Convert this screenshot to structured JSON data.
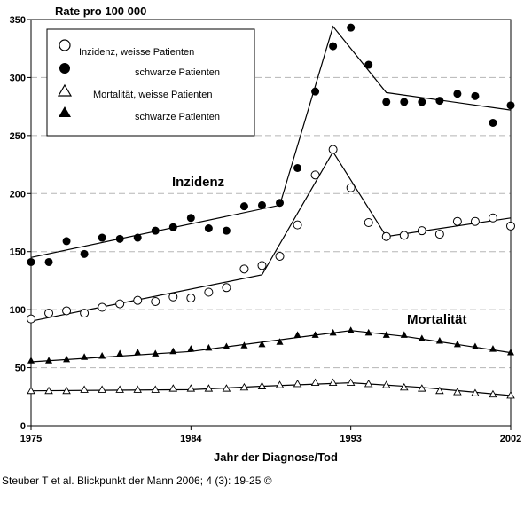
{
  "chart_data": {
    "type": "scatter",
    "ylabel": "Rate pro 100 000",
    "xlabel": "Jahr der Diagnose/Tod",
    "xlim": [
      1975,
      2002
    ],
    "ylim": [
      0,
      350
    ],
    "x_ticks": [
      1975,
      1984,
      1993,
      2002
    ],
    "y_ticks": [
      0,
      50,
      100,
      150,
      200,
      250,
      300,
      350
    ],
    "grid": "horizontal dashed",
    "legend_position": "top-left",
    "annotations": [
      "Inzidenz",
      "Mortalität"
    ],
    "years": [
      1975,
      1976,
      1977,
      1978,
      1979,
      1980,
      1981,
      1982,
      1983,
      1984,
      1985,
      1986,
      1987,
      1988,
      1989,
      1990,
      1991,
      1992,
      1993,
      1994,
      1995,
      1996,
      1997,
      1998,
      1999,
      2000,
      2001,
      2002
    ],
    "series": [
      {
        "name": "Inzidenz, weisse Patienten",
        "marker": "circle-open",
        "values": [
          92,
          97,
          99,
          97,
          102,
          105,
          108,
          107,
          111,
          110,
          115,
          119,
          135,
          138,
          146,
          173,
          216,
          238,
          205,
          175,
          163,
          164,
          168,
          165,
          176,
          176,
          179,
          172
        ],
        "trend": [
          [
            1975,
            90
          ],
          [
            1988,
            130
          ],
          [
            1992,
            236
          ],
          [
            1995,
            163
          ],
          [
            2002,
            179
          ]
        ]
      },
      {
        "name": "Inzidenz, schwarze Patienten",
        "marker": "circle-filled",
        "values": [
          141,
          141,
          159,
          148,
          162,
          161,
          162,
          168,
          171,
          179,
          170,
          168,
          189,
          190,
          192,
          222,
          288,
          327,
          343,
          311,
          279,
          279,
          279,
          280,
          286,
          284,
          261,
          276
        ],
        "trend": [
          [
            1975,
            145
          ],
          [
            1989,
            190
          ],
          [
            1992,
            344
          ],
          [
            1995,
            287
          ],
          [
            2002,
            272
          ]
        ]
      },
      {
        "name": "Mortalität, weisse Patienten",
        "marker": "triangle-open",
        "values": [
          30,
          30,
          30,
          31,
          31,
          31,
          31,
          31,
          32,
          32,
          32,
          32,
          33,
          34,
          35,
          36,
          37,
          37,
          37,
          36,
          35,
          33,
          32,
          30,
          29,
          28,
          27,
          26
        ],
        "trend": [
          [
            1975,
            30
          ],
          [
            1984,
            31
          ],
          [
            1988,
            34
          ],
          [
            1993,
            37
          ],
          [
            1997,
            33
          ],
          [
            2002,
            26
          ]
        ]
      },
      {
        "name": "Mortalität, schwarze Patienten",
        "marker": "triangle-filled",
        "values": [
          56,
          56,
          57,
          59,
          60,
          62,
          63,
          62,
          64,
          66,
          67,
          68,
          69,
          70,
          72,
          78,
          78,
          80,
          82,
          80,
          78,
          78,
          75,
          73,
          70,
          68,
          66,
          63
        ],
        "trend": [
          [
            1975,
            55
          ],
          [
            1984,
            64
          ],
          [
            1990,
            76
          ],
          [
            1993,
            82
          ],
          [
            1996,
            77
          ],
          [
            2002,
            63
          ]
        ]
      }
    ]
  },
  "legend": {
    "row1": "Inzidenz,  weisse Patienten",
    "row2": "schwarze Patienten",
    "row3": "Mortalität,  weisse Patienten",
    "row4": "schwarze Patienten"
  },
  "labels": {
    "ylabel": "Rate pro 100 000",
    "xlabel": "Jahr der Diagnose/Tod",
    "inzidenz": "Inzidenz",
    "mortalitaet": "Mortalität"
  },
  "caption": "Steuber T et al. Blickpunkt der Mann 2006; 4 (3): 19-25 ©"
}
